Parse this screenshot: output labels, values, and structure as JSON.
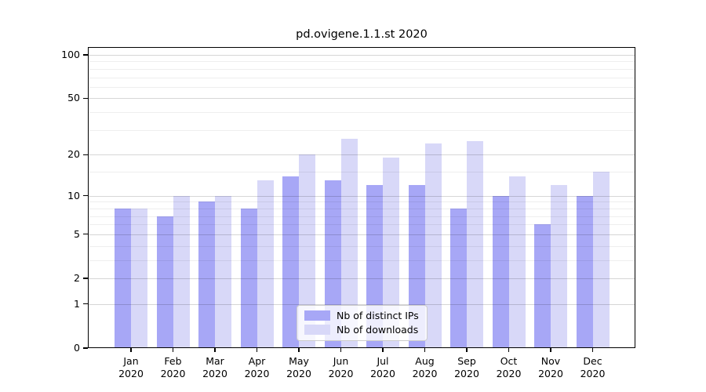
{
  "chart_data": {
    "type": "bar",
    "title": "pd.ovigene.1.1.st 2020",
    "categories": [
      "Jan",
      "Feb",
      "Mar",
      "Apr",
      "May",
      "Jun",
      "Jul",
      "Aug",
      "Sep",
      "Oct",
      "Nov",
      "Dec"
    ],
    "year_label": "2020",
    "series": [
      {
        "name": "Nb of distinct IPs",
        "color": "#a7a7f6",
        "values": [
          8,
          7,
          9,
          8,
          14,
          13,
          12,
          12,
          8,
          10,
          6,
          10
        ]
      },
      {
        "name": "Nb of downloads",
        "color": "#d8d8f8",
        "values": [
          8,
          10,
          10,
          13,
          20,
          26,
          19,
          24,
          25,
          14,
          12,
          15
        ]
      }
    ],
    "xlabel": "",
    "ylabel": "",
    "y_axis": {
      "scale": "log1p",
      "ylim": [
        0,
        100
      ],
      "major_ticks": [
        100,
        50,
        20,
        10,
        5,
        2,
        1,
        0
      ],
      "minor_ticks": [
        90,
        80,
        70,
        60,
        40,
        30,
        15,
        9,
        8,
        7,
        6,
        4,
        3
      ]
    },
    "grid": "horizontal",
    "legend": {
      "position": "bottom-center"
    },
    "colors": {
      "bar_distinct_ips": "#a7a7f6",
      "bar_downloads": "#d8d8f8",
      "grid_major": "rgba(0,0,0,0.16)",
      "grid_minor": "rgba(0,0,0,0.065)",
      "axis": "#000000",
      "background": "#ffffff"
    }
  }
}
